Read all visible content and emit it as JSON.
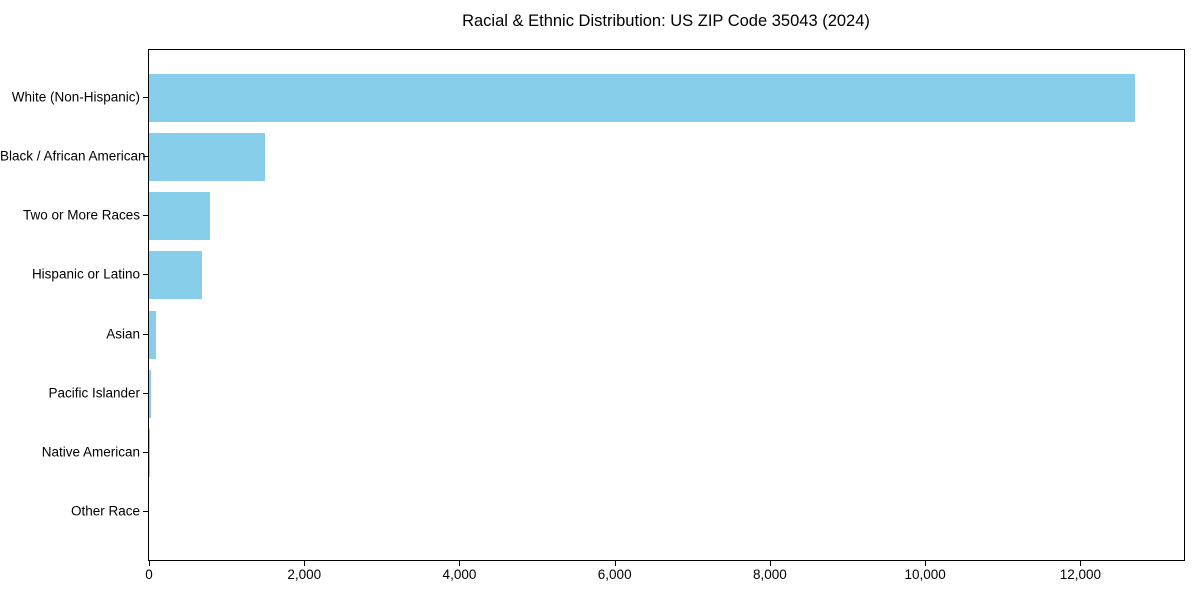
{
  "title": "Racial & Ethnic Distribution: US ZIP Code 35043 (2024)",
  "colors": {
    "bar": "#87CEEB",
    "spine": "#000000",
    "text": "#000000",
    "background": "#FFFFFF"
  },
  "chart_data": {
    "type": "bar",
    "orientation": "horizontal",
    "title": "Racial & Ethnic Distribution: US ZIP Code 35043 (2024)",
    "xlabel": "",
    "ylabel": "",
    "categories": [
      "White (Non-Hispanic)",
      "Black / African American",
      "Two or More Races",
      "Hispanic or Latino",
      "Asian",
      "Pacific Islander",
      "Native American",
      "Other Race"
    ],
    "values": [
      12700,
      1500,
      780,
      680,
      90,
      30,
      10,
      0
    ],
    "xlim": [
      0,
      13335
    ],
    "x_ticks": [
      0,
      2000,
      4000,
      6000,
      8000,
      10000,
      12000
    ],
    "x_tick_labels": [
      "0",
      "2,000",
      "4,000",
      "6,000",
      "8,000",
      "10,000",
      "12,000"
    ],
    "bar_color": "#87CEEB",
    "grid": false,
    "legend": false
  }
}
